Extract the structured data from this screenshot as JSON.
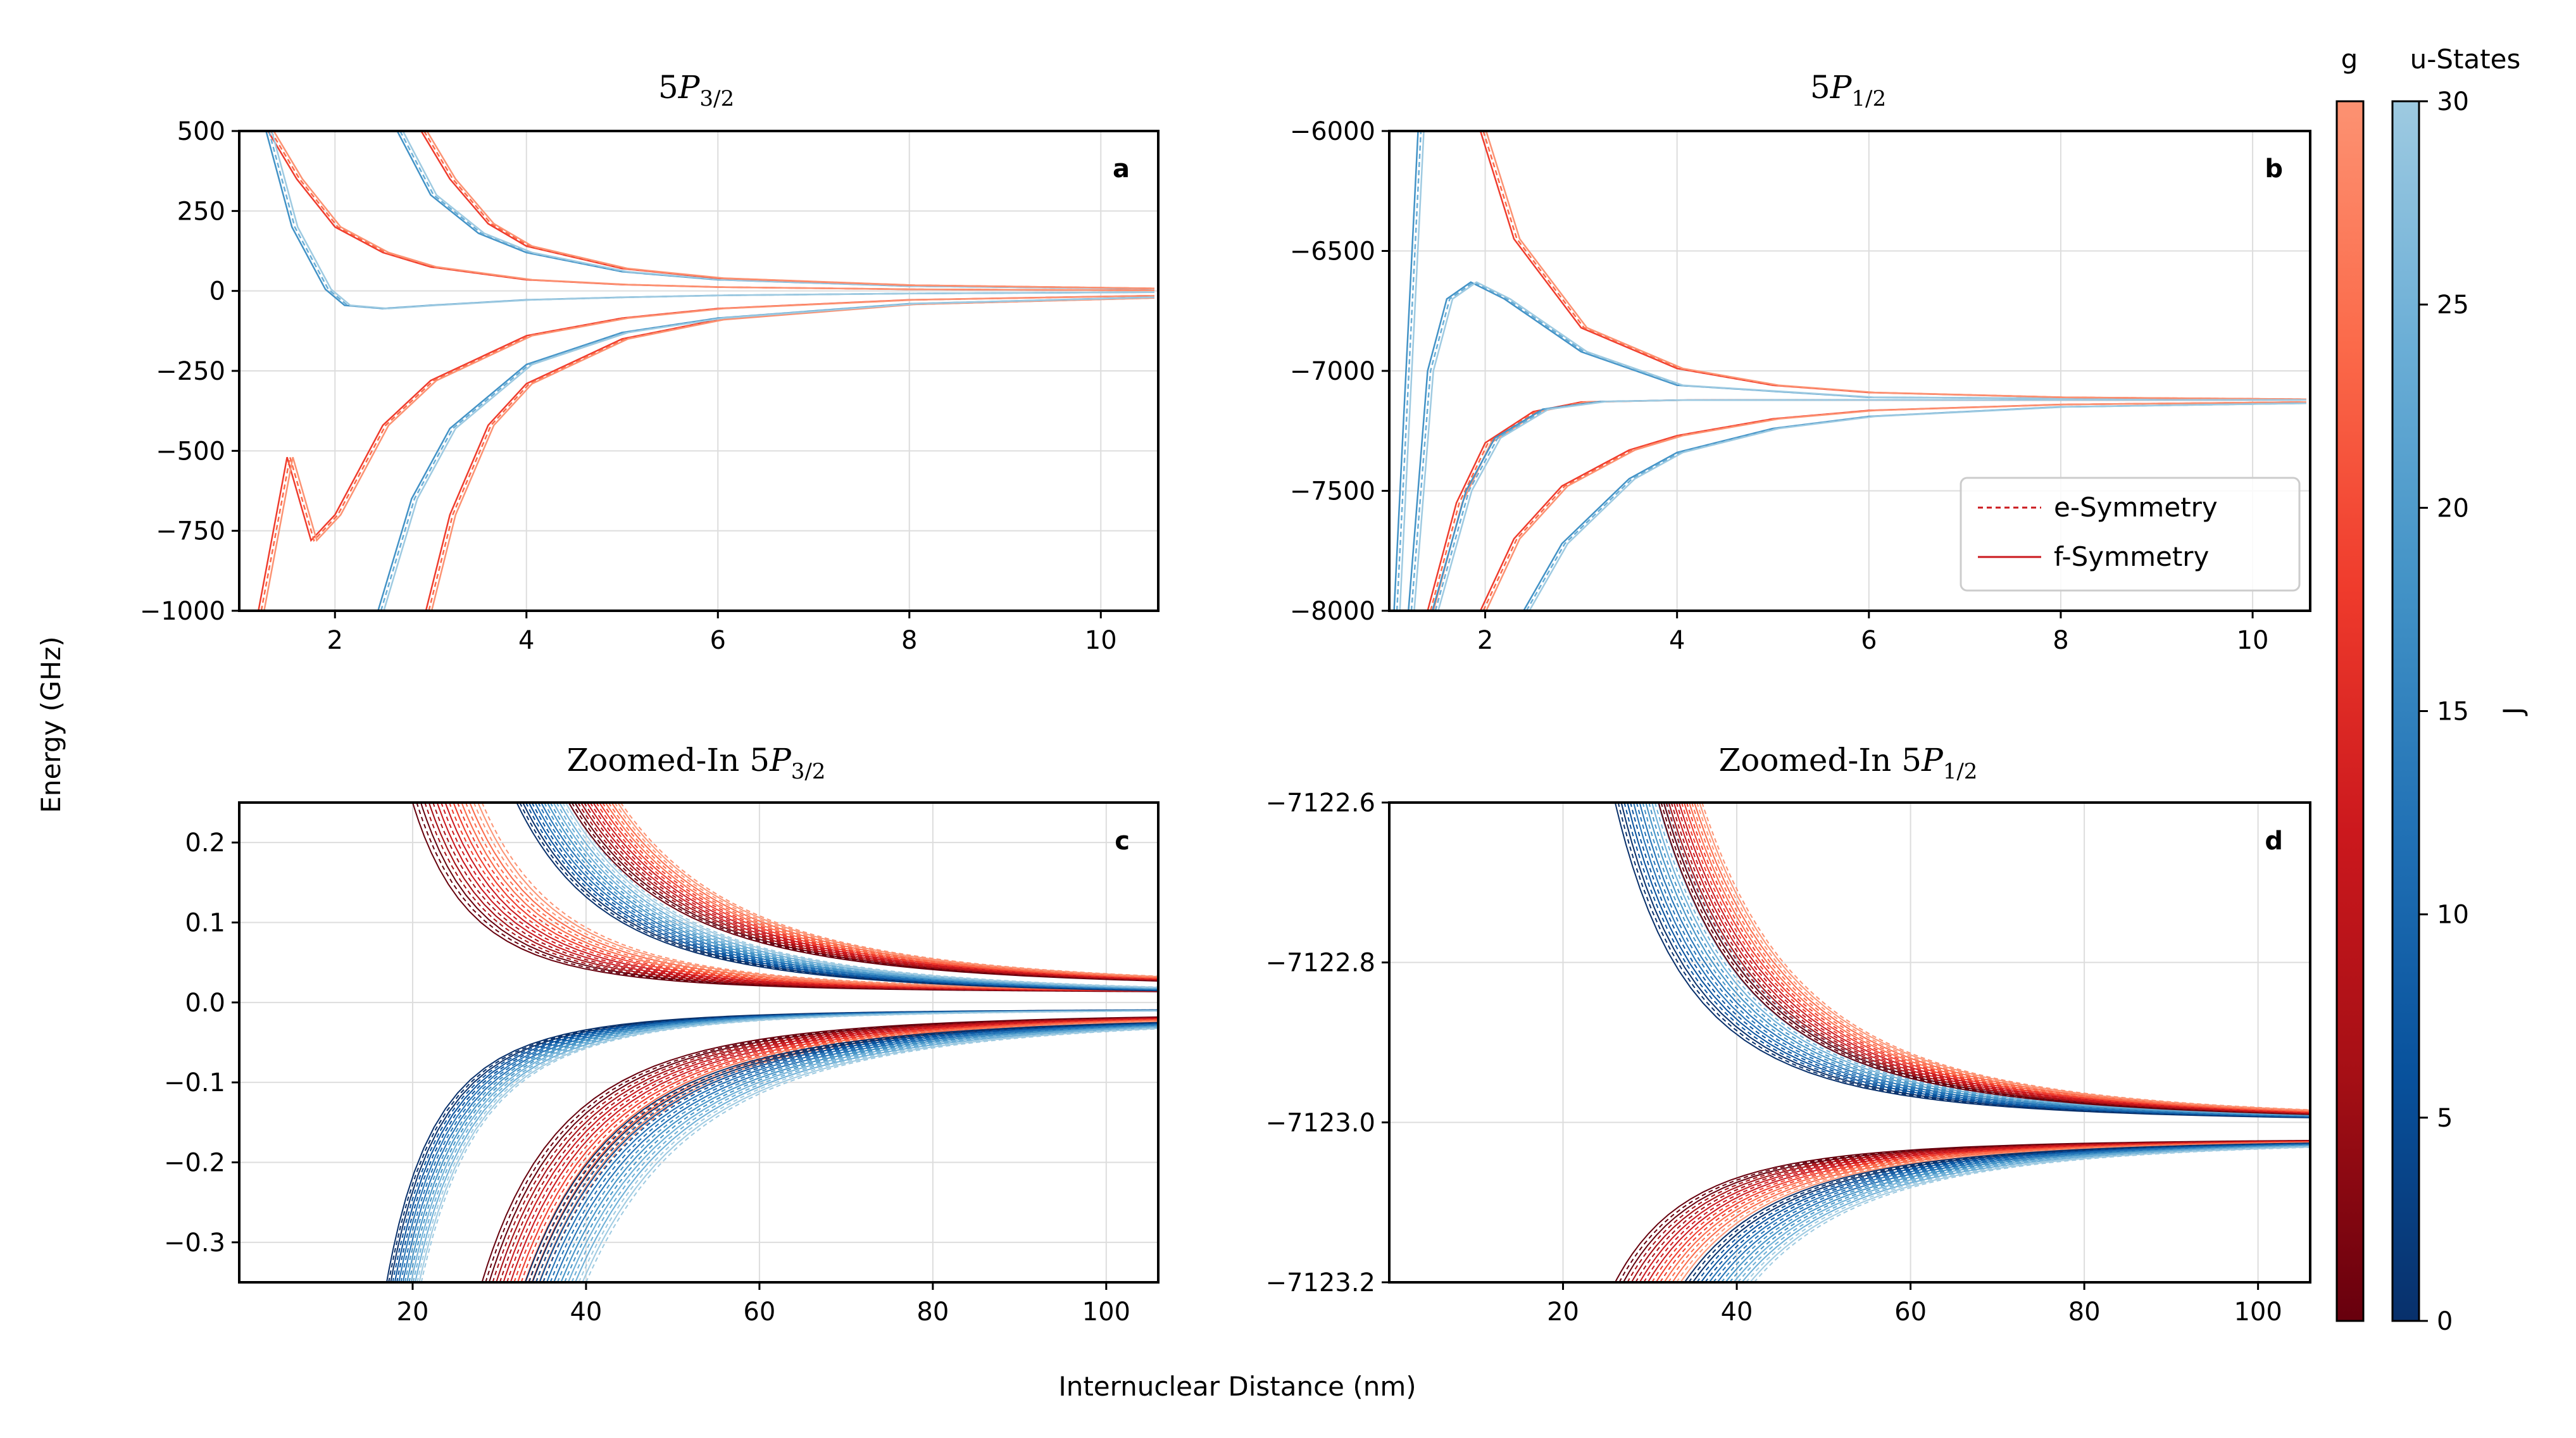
{
  "figure": {
    "ylabel": "Energy (GHz)",
    "xlabel": "Internuclear Distance (nm)"
  },
  "colorbars": {
    "g_label": "g",
    "u_label": "u-States",
    "j_label": "J",
    "ticks": [
      "0",
      "5",
      "10",
      "15",
      "20",
      "25",
      "30"
    ],
    "g_colors": [
      "#67000d",
      "#a50f15",
      "#cb181d",
      "#ef3b2c",
      "#fb6a4a",
      "#fc9272"
    ],
    "u_colors": [
      "#08306b",
      "#08519c",
      "#2171b5",
      "#4292c6",
      "#6baed6",
      "#9ecae1"
    ]
  },
  "legend": {
    "e_label": "e-Symmetry",
    "f_label": "f-Symmetry"
  },
  "chart_data": [
    {
      "type": "line",
      "panel": "a",
      "title_main": "5",
      "title_italic": "P",
      "title_sub": "3/2",
      "xlim": [
        1.0,
        10.6
      ],
      "ylim": [
        -1000,
        500
      ],
      "xticks": [
        "2",
        "4",
        "6",
        "8",
        "10"
      ],
      "yticks": [
        "500",
        "250",
        "0",
        "−250",
        "−500",
        "−750",
        "−1000"
      ],
      "curves": [
        {
          "family": "g",
          "x": [
            1.2,
            1.5,
            1.75,
            2.0,
            2.5,
            3.0,
            4.0,
            5.0,
            6.0,
            8.0,
            10.5
          ],
          "y": [
            -1000,
            -520,
            -780,
            -700,
            -420,
            -280,
            -140,
            -85,
            -55,
            -28,
            -15
          ]
        },
        {
          "family": "g",
          "x": [
            2.95,
            3.2,
            3.6,
            4.0,
            5.0,
            6.0,
            8.0,
            10.5
          ],
          "y": [
            -1000,
            -700,
            -420,
            -290,
            -150,
            -90,
            -42,
            -22
          ]
        },
        {
          "family": "u",
          "x": [
            2.45,
            2.8,
            3.2,
            4.0,
            5.0,
            6.0,
            8.0,
            10.5
          ],
          "y": [
            -1000,
            -650,
            -430,
            -230,
            -130,
            -85,
            -40,
            -20
          ]
        },
        {
          "family": "u",
          "x": [
            2.65,
            3.0,
            3.5,
            4.0,
            5.0,
            6.0,
            8.0,
            10.5
          ],
          "y": [
            500,
            300,
            180,
            120,
            60,
            35,
            15,
            7
          ]
        },
        {
          "family": "g",
          "x": [
            2.9,
            3.2,
            3.6,
            4.0,
            5.0,
            6.0,
            8.0,
            10.5
          ],
          "y": [
            500,
            350,
            210,
            140,
            70,
            40,
            18,
            8
          ]
        },
        {
          "family": "g",
          "x": [
            1.3,
            1.6,
            2.0,
            2.5,
            3.0,
            4.0,
            5.0,
            6.0,
            8.0,
            10.5
          ],
          "y": [
            500,
            350,
            200,
            120,
            75,
            35,
            20,
            12,
            5,
            2
          ]
        },
        {
          "family": "u",
          "x": [
            1.28,
            1.55,
            1.9,
            2.1,
            2.5,
            3.0,
            4.0,
            5.0,
            6.0,
            8.0,
            10.5
          ],
          "y": [
            500,
            200,
            5,
            -45,
            -55,
            -45,
            -28,
            -20,
            -14,
            -8,
            -4
          ]
        }
      ]
    },
    {
      "type": "line",
      "panel": "b",
      "title_main": "5",
      "title_italic": "P",
      "title_sub": "1/2",
      "xlim": [
        1.0,
        10.6
      ],
      "ylim": [
        -8000,
        -6000
      ],
      "xticks": [
        "2",
        "4",
        "6",
        "8",
        "10"
      ],
      "yticks": [
        "−6000",
        "−6500",
        "−7000",
        "−7500",
        "−8000"
      ],
      "curves": [
        {
          "family": "u",
          "x": [
            1.2,
            1.4,
            1.6,
            1.85,
            2.2,
            3.0,
            4.0,
            6.0,
            10.5
          ],
          "y": [
            -8000,
            -7000,
            -6700,
            -6630,
            -6700,
            -6920,
            -7060,
            -7110,
            -7120
          ]
        },
        {
          "family": "g",
          "x": [
            1.95,
            2.3,
            3.0,
            4.0,
            5.0,
            6.0,
            8.0,
            10.5
          ],
          "y": [
            -6000,
            -6450,
            -6820,
            -6990,
            -7060,
            -7090,
            -7110,
            -7118
          ]
        },
        {
          "family": "g",
          "x": [
            1.4,
            1.7,
            2.0,
            2.5,
            3.0,
            4.0,
            6.0,
            10.5
          ],
          "y": [
            -8000,
            -7550,
            -7300,
            -7170,
            -7130,
            -7122,
            -7121,
            -7121
          ]
        },
        {
          "family": "u",
          "x": [
            1.45,
            1.8,
            2.1,
            2.6,
            3.2,
            4.0,
            6.0,
            10.5
          ],
          "y": [
            -8000,
            -7500,
            -7280,
            -7160,
            -7128,
            -7122,
            -7121,
            -7121
          ]
        },
        {
          "family": "g",
          "x": [
            1.95,
            2.3,
            2.8,
            3.5,
            4.0,
            5.0,
            6.0,
            8.0,
            10.5
          ],
          "y": [
            -8000,
            -7700,
            -7480,
            -7330,
            -7270,
            -7200,
            -7165,
            -7140,
            -7130
          ]
        },
        {
          "family": "u",
          "x": [
            2.4,
            2.8,
            3.5,
            4.0,
            5.0,
            6.0,
            8.0,
            10.5
          ],
          "y": [
            -8000,
            -7720,
            -7450,
            -7340,
            -7240,
            -7190,
            -7150,
            -7135
          ]
        },
        {
          "family": "u",
          "x": [
            1.05,
            1.15,
            1.3
          ],
          "y": [
            -8000,
            -7200,
            -6000
          ]
        }
      ]
    },
    {
      "type": "line",
      "panel": "c",
      "title_main": "Zoomed-In 5",
      "title_italic": "P",
      "title_sub": "3/2",
      "xlim": [
        0,
        106
      ],
      "ylim": [
        -0.35,
        0.25
      ],
      "xticks": [
        "20",
        "40",
        "60",
        "80",
        "100"
      ],
      "yticks": [
        "0.2",
        "0.1",
        "0.0",
        "−0.1",
        "−0.2",
        "−0.3"
      ],
      "bands": [
        {
          "family": "g",
          "x0": 20,
          "x1": 28,
          "y0": 0.25,
          "end": 0.012,
          "sign": 1
        },
        {
          "family": "u",
          "x0": 32,
          "x1": 38,
          "y0": 0.25,
          "end": 0.008,
          "sign": 1
        },
        {
          "family": "g",
          "x0": 38,
          "x1": 44,
          "y0": 0.25,
          "end": 0.016,
          "sign": 1
        },
        {
          "family": "u",
          "x0": 17,
          "x1": 21,
          "y0": -0.35,
          "end": -0.008,
          "sign": -1
        },
        {
          "family": "g",
          "x0": 28,
          "x1": 35,
          "y0": -0.35,
          "end": -0.012,
          "sign": -1
        },
        {
          "family": "u",
          "x0": 33,
          "x1": 40,
          "y0": -0.35,
          "end": -0.015,
          "sign": -1
        }
      ]
    },
    {
      "type": "line",
      "panel": "d",
      "title_main": "Zoomed-In 5",
      "title_italic": "P",
      "title_sub": "1/2",
      "xlim": [
        0,
        106
      ],
      "ylim": [
        -7123.2,
        -7122.6
      ],
      "xticks": [
        "20",
        "40",
        "60",
        "80",
        "100"
      ],
      "yticks": [
        "−7122.6",
        "−7122.8",
        "−7123.0",
        "−7123.2"
      ],
      "bands": [
        {
          "family": "u",
          "x0": 26,
          "x1": 32,
          "y0": -7122.6,
          "end": -7123.0,
          "sign": 1
        },
        {
          "family": "g",
          "x0": 31,
          "x1": 36,
          "y0": -7122.6,
          "end": -7123.0,
          "sign": 1
        },
        {
          "family": "g",
          "x0": 26,
          "x1": 34,
          "y0": -7123.2,
          "end": -7123.02,
          "sign": -1
        },
        {
          "family": "u",
          "x0": 34,
          "x1": 42,
          "y0": -7123.2,
          "end": -7123.02,
          "sign": -1
        }
      ]
    }
  ]
}
